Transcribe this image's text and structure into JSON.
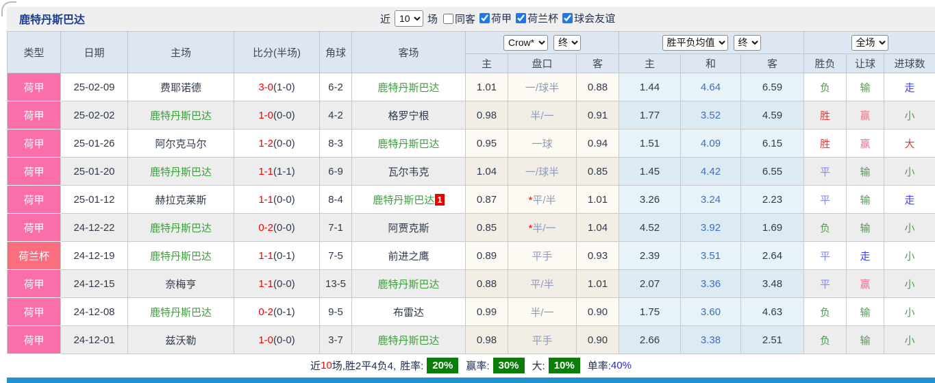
{
  "title": "鹿特丹斯巴达",
  "controls": {
    "near_label": "近",
    "count_value": "10",
    "games_label": "场",
    "same_away": {
      "label": "同客"
    },
    "leagues": [
      {
        "label": "荷甲",
        "checked": true
      },
      {
        "label": "荷兰杯",
        "checked": true
      },
      {
        "label": "球会友谊",
        "checked": true
      }
    ]
  },
  "table": {
    "star_glyph": "*",
    "static_headers": [
      "类型",
      "日期",
      "主场",
      "比分(半场)",
      "角球",
      "客场"
    ],
    "groups": {
      "handicap": {
        "bookmaker_select": "Crow*",
        "time_select": "终",
        "subs": [
          "主",
          "盘口",
          "客"
        ]
      },
      "odds": {
        "avg_select": "胜平负均值",
        "time_select": "终",
        "subs": [
          "主",
          "和",
          "客"
        ]
      },
      "result": {
        "scope_select": "全场",
        "subs": [
          "胜负",
          "让球",
          "进球数"
        ]
      }
    },
    "rows": [
      {
        "type": "荷甲",
        "type_key": "league",
        "date": "25-02-09",
        "home": {
          "name": "费耶诺德",
          "self": false
        },
        "score": {
          "ft": "3-0",
          "ht": "(1-0)"
        },
        "corner": "6-2",
        "away": {
          "name": "鹿特丹斯巴达",
          "self": true
        },
        "handicap": {
          "home": "1.01",
          "line": "一/球半",
          "star": false,
          "away": "0.88"
        },
        "odds": {
          "home": "1.44",
          "draw": "4.64",
          "away": "6.59"
        },
        "result": {
          "wdl": {
            "t": "负",
            "c": "green"
          },
          "asian": {
            "t": "输",
            "c": "green"
          },
          "goal": {
            "t": "走",
            "c": "blue"
          }
        }
      },
      {
        "type": "荷甲",
        "type_key": "league",
        "date": "25-02-02",
        "home": {
          "name": "鹿特丹斯巴达",
          "self": true
        },
        "score": {
          "ft": "1-0",
          "ht": "(0-0)"
        },
        "corner": "4-2",
        "away": {
          "name": "格罗宁根",
          "self": false
        },
        "handicap": {
          "home": "0.98",
          "line": "半/一",
          "star": false,
          "away": "0.91"
        },
        "odds": {
          "home": "1.77",
          "draw": "3.52",
          "away": "4.59"
        },
        "result": {
          "wdl": {
            "t": "胜",
            "c": "red"
          },
          "asian": {
            "t": "赢",
            "c": "pink"
          },
          "goal": {
            "t": "小",
            "c": "green"
          }
        }
      },
      {
        "type": "荷甲",
        "type_key": "league",
        "date": "25-01-26",
        "home": {
          "name": "阿尔克马尔",
          "self": false
        },
        "score": {
          "ft": "1-2",
          "ht": "(0-0)"
        },
        "corner": "8-3",
        "away": {
          "name": "鹿特丹斯巴达",
          "self": true
        },
        "handicap": {
          "home": "0.95",
          "line": "一球",
          "star": false,
          "away": "0.94"
        },
        "odds": {
          "home": "1.51",
          "draw": "4.09",
          "away": "6.15"
        },
        "result": {
          "wdl": {
            "t": "胜",
            "c": "red"
          },
          "asian": {
            "t": "赢",
            "c": "pink"
          },
          "goal": {
            "t": "大",
            "c": "red"
          }
        }
      },
      {
        "type": "荷甲",
        "type_key": "league",
        "date": "25-01-20",
        "home": {
          "name": "鹿特丹斯巴达",
          "self": true
        },
        "score": {
          "ft": "1-1",
          "ht": "(1-1)"
        },
        "corner": "6-9",
        "away": {
          "name": "瓦尔韦克",
          "self": false
        },
        "handicap": {
          "home": "1.04",
          "line": "一/球半",
          "star": false,
          "away": "0.85"
        },
        "odds": {
          "home": "1.45",
          "draw": "4.42",
          "away": "6.55"
        },
        "result": {
          "wdl": {
            "t": "平",
            "c": "violet"
          },
          "asian": {
            "t": "输",
            "c": "green"
          },
          "goal": {
            "t": "小",
            "c": "green"
          }
        }
      },
      {
        "type": "荷甲",
        "type_key": "league",
        "date": "25-01-12",
        "home": {
          "name": "赫拉克莱斯",
          "self": false
        },
        "score": {
          "ft": "1-1",
          "ht": "(0-0)"
        },
        "corner": "8-4",
        "away": {
          "name": "鹿特丹斯巴达",
          "self": true,
          "badge": "1"
        },
        "handicap": {
          "home": "0.87",
          "line": "平/半",
          "star": true,
          "away": "1.01"
        },
        "odds": {
          "home": "3.26",
          "draw": "3.24",
          "away": "2.23"
        },
        "result": {
          "wdl": {
            "t": "平",
            "c": "violet"
          },
          "asian": {
            "t": "输",
            "c": "green"
          },
          "goal": {
            "t": "走",
            "c": "blue"
          }
        }
      },
      {
        "type": "荷甲",
        "type_key": "league",
        "date": "24-12-22",
        "home": {
          "name": "鹿特丹斯巴达",
          "self": true
        },
        "score": {
          "ft": "0-2",
          "ht": "(0-0)"
        },
        "corner": "7-1",
        "away": {
          "name": "阿贾克斯",
          "self": false
        },
        "handicap": {
          "home": "0.85",
          "line": "半/一",
          "star": true,
          "away": "1.04"
        },
        "odds": {
          "home": "4.52",
          "draw": "3.92",
          "away": "1.69"
        },
        "result": {
          "wdl": {
            "t": "负",
            "c": "green"
          },
          "asian": {
            "t": "输",
            "c": "green"
          },
          "goal": {
            "t": "小",
            "c": "green"
          }
        }
      },
      {
        "type": "荷兰杯",
        "type_key": "cup",
        "date": "24-12-19",
        "home": {
          "name": "鹿特丹斯巴达",
          "self": true
        },
        "score": {
          "ft": "1-1",
          "ht": "(0-1)"
        },
        "corner": "7-5",
        "away": {
          "name": "前进之鹰",
          "self": false
        },
        "handicap": {
          "home": "0.89",
          "line": "平手",
          "star": false,
          "away": "0.93"
        },
        "odds": {
          "home": "2.39",
          "draw": "3.51",
          "away": "2.64"
        },
        "result": {
          "wdl": {
            "t": "平",
            "c": "violet"
          },
          "asian": {
            "t": "走",
            "c": "blue"
          },
          "goal": {
            "t": "小",
            "c": "green"
          }
        }
      },
      {
        "type": "荷甲",
        "type_key": "league",
        "date": "24-12-15",
        "home": {
          "name": "奈梅亨",
          "self": false
        },
        "score": {
          "ft": "1-1",
          "ht": "(0-0)"
        },
        "corner": "13-5",
        "away": {
          "name": "鹿特丹斯巴达",
          "self": true
        },
        "handicap": {
          "home": "0.88",
          "line": "平/半",
          "star": false,
          "away": "1.01"
        },
        "odds": {
          "home": "2.07",
          "draw": "3.36",
          "away": "3.48"
        },
        "result": {
          "wdl": {
            "t": "平",
            "c": "violet"
          },
          "asian": {
            "t": "赢",
            "c": "pink"
          },
          "goal": {
            "t": "小",
            "c": "green"
          }
        }
      },
      {
        "type": "荷甲",
        "type_key": "league",
        "date": "24-12-08",
        "home": {
          "name": "鹿特丹斯巴达",
          "self": true
        },
        "score": {
          "ft": "0-2",
          "ht": "(0-1)"
        },
        "corner": "9-5",
        "away": {
          "name": "布雷达",
          "self": false
        },
        "handicap": {
          "home": "0.99",
          "line": "半/一",
          "star": false,
          "away": "0.90"
        },
        "odds": {
          "home": "1.75",
          "draw": "3.60",
          "away": "4.63"
        },
        "result": {
          "wdl": {
            "t": "负",
            "c": "green"
          },
          "asian": {
            "t": "输",
            "c": "green"
          },
          "goal": {
            "t": "小",
            "c": "green"
          }
        }
      },
      {
        "type": "荷甲",
        "type_key": "league",
        "date": "24-12-01",
        "home": {
          "name": "兹沃勒",
          "self": false
        },
        "score": {
          "ft": "1-0",
          "ht": "(0-0)"
        },
        "corner": "3-7",
        "away": {
          "name": "鹿特丹斯巴达",
          "self": true
        },
        "handicap": {
          "home": "0.98",
          "line": "平手",
          "star": false,
          "away": "0.90"
        },
        "odds": {
          "home": "2.66",
          "draw": "3.38",
          "away": "2.51"
        },
        "result": {
          "wdl": {
            "t": "负",
            "c": "green"
          },
          "asian": {
            "t": "输",
            "c": "green"
          },
          "goal": {
            "t": "小",
            "c": "green"
          }
        }
      }
    ]
  },
  "summary": {
    "prefix": "近",
    "count": "10",
    "record": "场,胜2平4负4,",
    "win_rate_label": "胜率:",
    "win_rate": "20%",
    "cover_rate_label": "赢率:",
    "cover_rate": "30%",
    "big_rate_label": "大:",
    "big_rate": "10%",
    "single_rate_label": "单率:",
    "single_rate": "40%"
  },
  "colors": {
    "league_pink": "#fa6fa9",
    "cup_salmon": "#fa6f80",
    "win_red": "#e23b3b",
    "lose_green": "#579a57",
    "push_blue": "#3d3df2",
    "draw_violet": "#8787f2",
    "cover_pink": "#f4728c",
    "score_red": "#f50000",
    "self_team_green": "#3ca03c",
    "badge_green_bg": "#0a7d0a",
    "bottom_bar_blue": "#2191cf",
    "header_bg": "#dde6f1"
  }
}
